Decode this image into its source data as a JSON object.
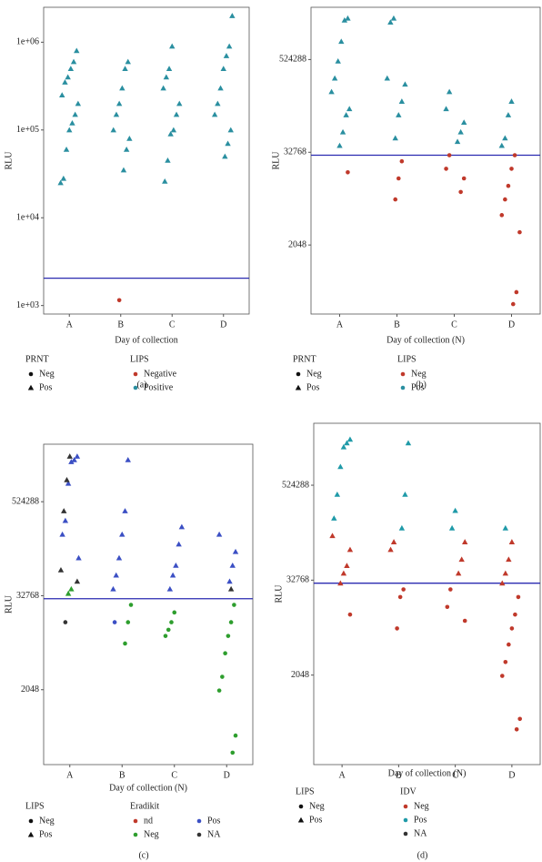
{
  "chart_data": [
    {
      "type": "scatter",
      "caption": "(a)",
      "x_label": "Day of collection",
      "y_label": "RLU",
      "categories": [
        "A",
        "B",
        "C",
        "D"
      ],
      "log_y": true,
      "ylim": [
        800,
        2500000
      ],
      "yticks": [
        {
          "value": 1000,
          "label": "1e+03"
        },
        {
          "value": 10000,
          "label": "1e+04"
        },
        {
          "value": 100000,
          "label": "1e+05"
        },
        {
          "value": 1000000,
          "label": "1e+06"
        }
      ],
      "hline": {
        "value": 2048,
        "color": "#2a2ab0"
      },
      "legends": [
        {
          "title": "PRNT",
          "entries": [
            {
              "label": "Neg",
              "shape": "circle"
            },
            {
              "label": "Pos",
              "shape": "triangle"
            }
          ]
        },
        {
          "title": "LIPS",
          "entries": [
            {
              "label": "Negative",
              "color": "#c0392b"
            },
            {
              "label": "Positive",
              "color": "#2a8fa0"
            }
          ]
        }
      ],
      "series": [
        {
          "shape": "triangle",
          "color": "#2a8fa0",
          "x": [
            "A",
            "A",
            "A",
            "A",
            "A",
            "A",
            "A",
            "A",
            "A",
            "A",
            "A",
            "A",
            "A",
            "B",
            "B",
            "B",
            "B",
            "B",
            "B",
            "B",
            "B",
            "B",
            "C",
            "C",
            "C",
            "C",
            "C",
            "C",
            "C",
            "C",
            "C",
            "C",
            "D",
            "D",
            "D",
            "D",
            "D",
            "D",
            "D",
            "D",
            "D",
            "D"
          ],
          "values": [
            800000,
            600000,
            500000,
            400000,
            350000,
            250000,
            200000,
            150000,
            120000,
            100000,
            60000,
            28000,
            25000,
            600000,
            500000,
            300000,
            200000,
            150000,
            100000,
            80000,
            60000,
            35000,
            900000,
            500000,
            400000,
            300000,
            200000,
            150000,
            100000,
            90000,
            45000,
            26000,
            2000000,
            900000,
            700000,
            500000,
            300000,
            200000,
            150000,
            100000,
            70000,
            50000
          ]
        },
        {
          "shape": "circle",
          "color": "#c0392b",
          "x": [
            "B"
          ],
          "values": [
            1150
          ]
        }
      ]
    },
    {
      "type": "scatter",
      "caption": "(b)",
      "x_label": "Day of collection (N)",
      "y_label": "RLU",
      "categories": [
        "A",
        "B",
        "C",
        "D"
      ],
      "log_y": true,
      "ylim": [
        260,
        2500000
      ],
      "yticks": [
        2048,
        32768,
        524288
      ],
      "hline": {
        "value": 30000,
        "color": "#2a2ab0"
      },
      "legends": [
        {
          "title": "PRNT",
          "entries": [
            {
              "label": "Neg",
              "shape": "circle"
            },
            {
              "label": "Pos",
              "shape": "triangle"
            }
          ]
        },
        {
          "title": "LIPS",
          "entries": [
            {
              "label": "Neg",
              "color": "#c0392b"
            },
            {
              "label": "Pos",
              "color": "#2a8fa0"
            }
          ]
        }
      ],
      "series": [
        {
          "shape": "triangle",
          "color": "#2a8fa0",
          "x": [
            "A",
            "A",
            "A",
            "A",
            "A",
            "A",
            "A",
            "A",
            "A",
            "A",
            "B",
            "B",
            "B",
            "B",
            "B",
            "B",
            "B",
            "C",
            "C",
            "C",
            "C",
            "C",
            "D",
            "D",
            "D",
            "D"
          ],
          "values": [
            1800000,
            1700000,
            900000,
            500000,
            300000,
            200000,
            120000,
            100000,
            60000,
            40000,
            1800000,
            1600000,
            300000,
            250000,
            150000,
            100000,
            50000,
            200000,
            120000,
            80000,
            60000,
            45000,
            150000,
            100000,
            50000,
            40000
          ]
        },
        {
          "shape": "circle",
          "color": "#c0392b",
          "x": [
            "A",
            "B",
            "B",
            "B",
            "C",
            "C",
            "C",
            "C",
            "D",
            "D",
            "D",
            "D",
            "D",
            "D",
            "D",
            "D"
          ],
          "values": [
            18000,
            25000,
            15000,
            8000,
            30000,
            20000,
            15000,
            10000,
            30000,
            20000,
            12000,
            8000,
            5000,
            3000,
            500,
            350
          ]
        }
      ]
    },
    {
      "type": "scatter",
      "caption": "(c)",
      "x_label": "Day of collection (N)",
      "y_label": "RLU",
      "categories": [
        "A",
        "B",
        "C",
        "D"
      ],
      "log_y": true,
      "ylim": [
        225,
        2860000
      ],
      "yticks": [
        2048,
        32768,
        524288
      ],
      "hline": {
        "value": 30000,
        "color": "#2a2ab0"
      },
      "legends": [
        {
          "title": "LIPS",
          "entries": [
            {
              "label": "Neg",
              "shape": "circle"
            },
            {
              "label": "Pos",
              "shape": "triangle"
            }
          ]
        },
        {
          "title": "Eradikit",
          "entries": [
            {
              "label": "nd",
              "color": "#c0392b"
            },
            {
              "label": "Neg",
              "color": "#2e9e2e"
            },
            {
              "label": "Pos",
              "color": "#3b4fc4"
            },
            {
              "label": "NA",
              "color": "#333333"
            }
          ]
        }
      ],
      "series": [
        {
          "shape": "triangle",
          "color": "#3b4fc4",
          "x": [
            "A",
            "A",
            "A",
            "A",
            "A",
            "A",
            "A",
            "B",
            "B",
            "B",
            "B",
            "B",
            "B",
            "C",
            "C",
            "C",
            "C",
            "C",
            "D",
            "D",
            "D",
            "D"
          ],
          "values": [
            2000000,
            1800000,
            1700000,
            900000,
            300000,
            200000,
            100000,
            1800000,
            400000,
            200000,
            100000,
            60000,
            40000,
            250000,
            150000,
            80000,
            60000,
            40000,
            200000,
            120000,
            80000,
            50000
          ]
        },
        {
          "shape": "triangle",
          "color": "#333333",
          "x": [
            "A",
            "A",
            "A",
            "A",
            "A",
            "D"
          ],
          "values": [
            2000000,
            1000000,
            400000,
            70000,
            50000,
            40000
          ]
        },
        {
          "shape": "triangle",
          "color": "#2e9e2e",
          "x": [
            "A",
            "A"
          ],
          "values": [
            40000,
            35000
          ]
        },
        {
          "shape": "circle",
          "color": "#333333",
          "x": [
            "A"
          ],
          "values": [
            15000
          ]
        },
        {
          "shape": "circle",
          "color": "#3b4fc4",
          "x": [
            "B"
          ],
          "values": [
            15000
          ]
        },
        {
          "shape": "circle",
          "color": "#2e9e2e",
          "x": [
            "B",
            "B",
            "B",
            "C",
            "C",
            "C",
            "C",
            "D",
            "D",
            "D",
            "D",
            "D",
            "D",
            "D",
            "D"
          ],
          "values": [
            25000,
            15000,
            8000,
            20000,
            15000,
            12000,
            10000,
            25000,
            15000,
            10000,
            6000,
            3000,
            2000,
            530,
            320
          ]
        }
      ]
    },
    {
      "type": "scatter",
      "caption": "(d)",
      "x_label": "Day of collection (N)",
      "y_label": "RLU",
      "categories": [
        "A",
        "B",
        "C",
        "D"
      ],
      "log_y": true,
      "ylim": [
        150,
        3200000
      ],
      "yticks": [
        2048,
        32768,
        524288
      ],
      "hline": {
        "value": 30000,
        "color": "#2a2ab0"
      },
      "legends": [
        {
          "title": "LIPS",
          "entries": [
            {
              "label": "Neg",
              "shape": "circle"
            },
            {
              "label": "Pos",
              "shape": "triangle"
            }
          ]
        },
        {
          "title": "IDV",
          "entries": [
            {
              "label": "Neg",
              "color": "#c0392b"
            },
            {
              "label": "Pos",
              "color": "#1f9aa8"
            },
            {
              "label": "NA",
              "color": "#333333"
            }
          ]
        }
      ],
      "series": [
        {
          "shape": "triangle",
          "color": "#1f9aa8",
          "x": [
            "A",
            "A",
            "A",
            "A",
            "A",
            "A",
            "B",
            "B",
            "B",
            "C",
            "C",
            "D"
          ],
          "values": [
            2000000,
            1800000,
            1600000,
            900000,
            400000,
            200000,
            1800000,
            400000,
            150000,
            250000,
            150000,
            150000
          ]
        },
        {
          "shape": "triangle",
          "color": "#c0392b",
          "x": [
            "A",
            "A",
            "A",
            "A",
            "A",
            "B",
            "B",
            "C",
            "C",
            "C",
            "D",
            "D",
            "D",
            "D"
          ],
          "values": [
            120000,
            80000,
            50000,
            40000,
            30000,
            100000,
            80000,
            100000,
            60000,
            40000,
            100000,
            60000,
            40000,
            30000
          ]
        },
        {
          "shape": "circle",
          "color": "#c0392b",
          "x": [
            "A",
            "B",
            "B",
            "B",
            "C",
            "C",
            "C",
            "D",
            "D",
            "D",
            "D",
            "D",
            "D",
            "D",
            "D"
          ],
          "values": [
            12000,
            25000,
            20000,
            8000,
            25000,
            15000,
            10000,
            20000,
            12000,
            8000,
            5000,
            3000,
            2000,
            570,
            420
          ]
        }
      ]
    }
  ]
}
